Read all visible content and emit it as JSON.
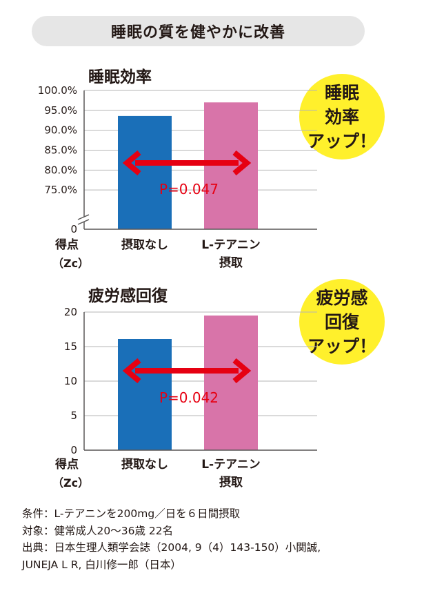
{
  "header": {
    "title": "睡眠の質を健やかに改善"
  },
  "chart_data": [
    {
      "type": "bar",
      "title": "睡眠効率",
      "categories": [
        "摂取なし",
        "L-テアニン\n摂取"
      ],
      "values": [
        93.6,
        97.0
      ],
      "ylabel": "得点\n（Zc）",
      "ylim": [
        70,
        100
      ],
      "axis_break": true,
      "yticks": [
        0,
        75,
        80,
        85,
        90,
        95,
        100
      ],
      "ytick_labels": [
        "0",
        "75.0%",
        "80.0%",
        "85.0%",
        "90.0%",
        "95.0%",
        "100.0%"
      ],
      "grid": true,
      "annotation": "P=0.047",
      "badge": [
        "睡眠",
        "効率",
        "アップ！"
      ],
      "colors": [
        "#1a6fb8",
        "#d874a9"
      ]
    },
    {
      "type": "bar",
      "title": "疲労感回復",
      "categories": [
        "摂取なし",
        "L-テアニン\n摂取"
      ],
      "values": [
        16.1,
        19.5
      ],
      "ylabel": "得点\n（Zc）",
      "ylim": [
        0,
        20
      ],
      "yticks": [
        0,
        5,
        10,
        15,
        20
      ],
      "ytick_labels": [
        "0",
        "5",
        "10",
        "15",
        "20"
      ],
      "grid": true,
      "annotation": "P=0.042",
      "badge": [
        "疲労感",
        "回復",
        "アップ！"
      ],
      "colors": [
        "#1a6fb8",
        "#d874a9"
      ]
    }
  ],
  "colors": {
    "arrow": "#e60012",
    "badge": "#fff02c",
    "grid": "#b5b5b5",
    "axis": "#595757"
  },
  "footnotes": [
    "条件：L-テアニンを200mg／日を６日間摂取",
    "対象：健常成人20〜36歳 22名",
    "出典：日本生理人類学会誌（2004, 9（4）143-150）小関誠,",
    "JUNEJA L R, 白川修一郎（日本）"
  ]
}
